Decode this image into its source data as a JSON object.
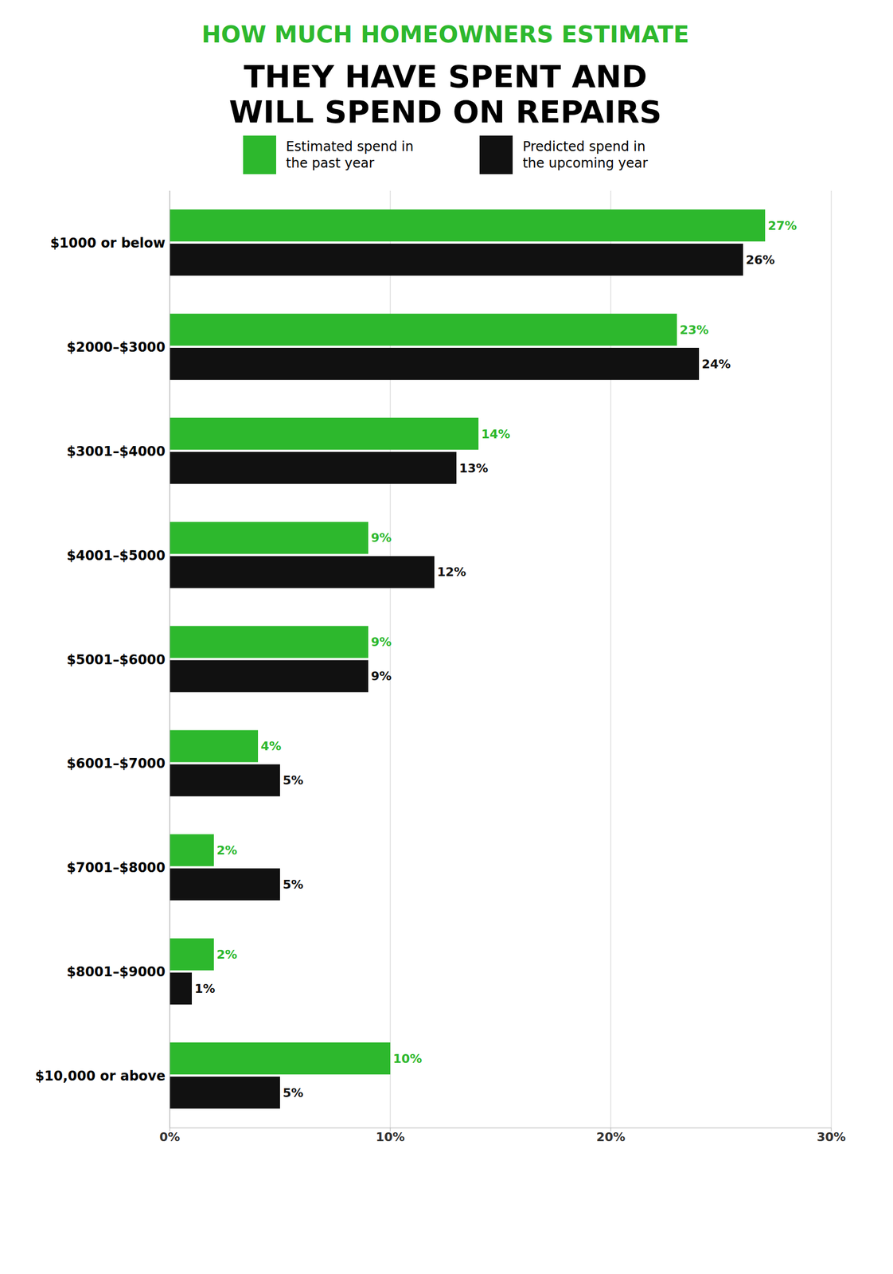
{
  "chart_data": {
    "type": "bar",
    "orientation": "horizontal",
    "title": "HOW MUCH HOMEOWNERS ESTIMATE",
    "subtitle": "THEY HAVE SPENT AND\nWILL SPEND ON REPAIRS",
    "categories": [
      "$1000 or below",
      "$2000–$3000",
      "$3001–$4000",
      "$4001–$5000",
      "$5001–$6000",
      "$6001–$7000",
      "$7001–$8000",
      "$8001–$9000",
      "$10,000 or above"
    ],
    "series": [
      {
        "name": "Estimated spend in\nthe past year",
        "color": "#2db82d",
        "values": [
          27,
          23,
          14,
          9,
          9,
          4,
          2,
          2,
          10
        ],
        "value_labels": [
          "27%",
          "23%",
          "14%",
          "9%",
          "9%",
          "4%",
          "2%",
          "2%",
          "10%"
        ]
      },
      {
        "name": "Predicted spend in\nthe upcoming year",
        "color": "#111111",
        "values": [
          26,
          24,
          13,
          12,
          9,
          5,
          5,
          1,
          5
        ],
        "value_labels": [
          "26%",
          "24%",
          "13%",
          "12%",
          "9%",
          "5%",
          "5%",
          "1%",
          "5%"
        ]
      }
    ],
    "xlim": [
      0,
      30
    ],
    "xticks": [
      {
        "value": 0,
        "label": "0%"
      },
      {
        "value": 10,
        "label": "10%"
      },
      {
        "value": 20,
        "label": "20%"
      },
      {
        "value": 30,
        "label": "30%"
      }
    ],
    "grid": true,
    "legend": "top",
    "data_labels": true
  }
}
